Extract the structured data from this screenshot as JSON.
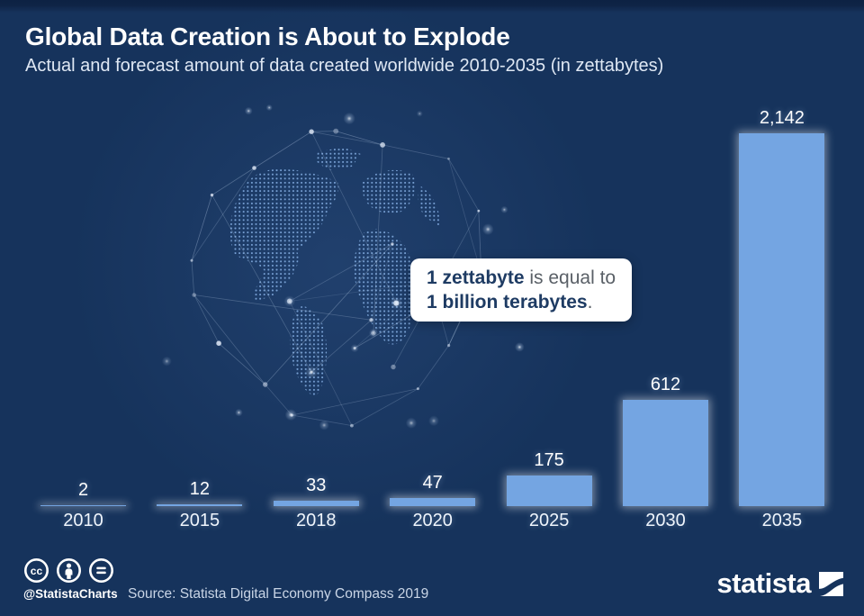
{
  "header": {
    "title": "Global Data Creation is About to Explode",
    "subtitle": "Actual and forecast amount of data created worldwide 2010-2035 (in zettabytes)"
  },
  "chart_data": {
    "type": "bar",
    "categories": [
      "2010",
      "2015",
      "2018",
      "2020",
      "2025",
      "2030",
      "2035"
    ],
    "values": [
      2,
      12,
      33,
      47,
      175,
      612,
      2142
    ],
    "value_labels": [
      "2",
      "12",
      "33",
      "47",
      "175",
      "612",
      "2,142"
    ],
    "unit": "zettabytes",
    "title": "Actual and forecast amount of data created worldwide 2010-2035 (in zettabytes)",
    "xlabel": "",
    "ylabel": "",
    "ylim": [
      0,
      2200
    ],
    "grid": false,
    "legend": false,
    "bar_color": "#74a5e2",
    "label_position": "above-bar"
  },
  "annotation": {
    "line1_bold": "1 zettabyte",
    "line1_rest": " is equal to",
    "line2_bold": "1 billion terabytes",
    "line2_rest": "."
  },
  "footer": {
    "license_icons": [
      "cc-icon",
      "attribution-icon",
      "no-derivatives-icon"
    ],
    "handle": "@StatistaCharts",
    "source": "Source: Statista Digital Economy Compass 2019",
    "brand": "statista"
  },
  "colors": {
    "background": "#16335c",
    "bar": "#74a5e2",
    "title_text": "#ffffff",
    "annotation_bold": "#1e3b63",
    "annotation_text": "#5a6067"
  }
}
